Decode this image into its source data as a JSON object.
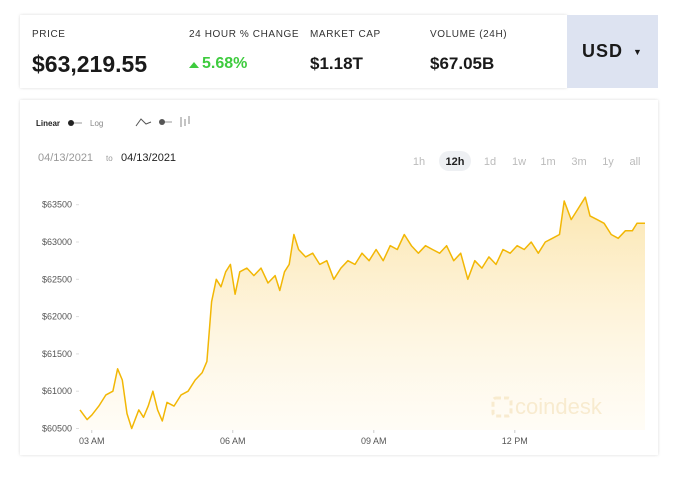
{
  "header": {
    "price_label": "PRICE",
    "price": "$63,219.55",
    "change_label": "24 HOUR % CHANGE",
    "change": "5.68%",
    "cap_label": "MARKET CAP",
    "cap": "$1.18T",
    "volume_label": "VOLUME (24H)",
    "volume": "$67.05B",
    "currency": "USD"
  },
  "controls": {
    "scales": [
      "Linear",
      "Log"
    ],
    "date_from": "04/13/2021",
    "date_to_word": "to",
    "date_to": "04/13/2021",
    "ranges": [
      "1h",
      "12h",
      "1d",
      "1w",
      "1m",
      "3m",
      "1y",
      "all"
    ],
    "active_range": 1
  },
  "watermark": "coindesk",
  "chart_data": {
    "type": "line",
    "color": "#f2b705",
    "x": [
      2.75,
      2.9,
      3.0,
      3.15,
      3.3,
      3.45,
      3.55,
      3.65,
      3.75,
      3.85,
      4.0,
      4.1,
      4.2,
      4.3,
      4.4,
      4.5,
      4.6,
      4.75,
      4.9,
      5.05,
      5.2,
      5.35,
      5.45,
      5.55,
      5.65,
      5.75,
      5.85,
      5.95,
      6.05,
      6.15,
      6.3,
      6.45,
      6.6,
      6.75,
      6.9,
      7.0,
      7.1,
      7.2,
      7.3,
      7.4,
      7.55,
      7.7,
      7.85,
      8.0,
      8.15,
      8.3,
      8.45,
      8.6,
      8.75,
      8.9,
      9.05,
      9.2,
      9.35,
      9.5,
      9.65,
      9.8,
      9.95,
      10.1,
      10.25,
      10.4,
      10.55,
      10.7,
      10.85,
      11.0,
      11.15,
      11.3,
      11.45,
      11.6,
      11.75,
      11.9,
      12.05,
      12.2,
      12.35,
      12.5,
      12.65,
      12.8,
      12.95,
      13.05,
      13.2,
      13.35,
      13.5,
      13.6,
      13.75,
      13.9,
      14.05,
      14.2,
      14.35,
      14.5,
      14.6,
      14.77
    ],
    "values": [
      60750,
      60620,
      60680,
      60800,
      60950,
      61000,
      61300,
      61150,
      60700,
      60500,
      60750,
      60650,
      60800,
      61000,
      60750,
      60600,
      60850,
      60800,
      60950,
      61000,
      61150,
      61250,
      61400,
      62200,
      62500,
      62400,
      62600,
      62700,
      62300,
      62600,
      62650,
      62550,
      62650,
      62450,
      62550,
      62350,
      62600,
      62700,
      63100,
      62900,
      62800,
      62850,
      62700,
      62750,
      62500,
      62650,
      62750,
      62700,
      62850,
      62750,
      62900,
      62750,
      62950,
      62900,
      63100,
      62950,
      62850,
      62950,
      62900,
      62850,
      62950,
      62750,
      62850,
      62500,
      62750,
      62650,
      62800,
      62700,
      62900,
      62850,
      62950,
      62900,
      63000,
      62850,
      63000,
      63050,
      63100,
      63550,
      63300,
      63450,
      63600,
      63350,
      63300,
      63250,
      63100,
      63050,
      63150,
      63150,
      63250,
      63250
    ],
    "xlim": [
      2.75,
      14.77
    ],
    "xticks": [
      {
        "value": 3,
        "label": "03 AM"
      },
      {
        "value": 6,
        "label": "06 AM"
      },
      {
        "value": 9,
        "label": "09 AM"
      },
      {
        "value": 12,
        "label": "12 PM"
      }
    ],
    "ylim": [
      60480,
      63630
    ],
    "yticks": [
      {
        "value": 60500,
        "label": "$60500"
      },
      {
        "value": 61000,
        "label": "$61000"
      },
      {
        "value": 61500,
        "label": "$61500"
      },
      {
        "value": 62000,
        "label": "$62000"
      },
      {
        "value": 62500,
        "label": "$62500"
      },
      {
        "value": 63000,
        "label": "$63000"
      },
      {
        "value": 63500,
        "label": "$63500"
      }
    ]
  }
}
